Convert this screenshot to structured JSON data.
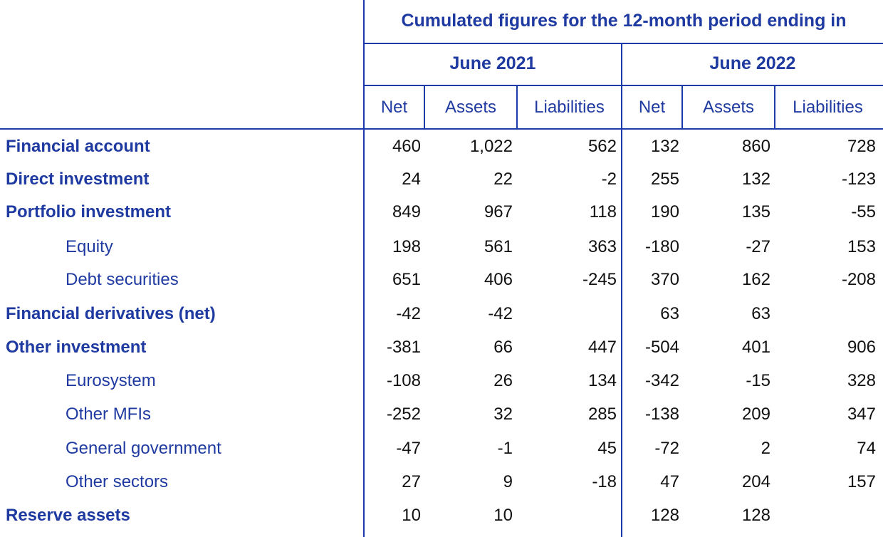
{
  "header": {
    "title": "Cumulated figures for the 12-month period ending in",
    "periods": [
      "June 2021",
      "June 2022"
    ],
    "columns": [
      "Net",
      "Assets",
      "Liabilities",
      "Net",
      "Assets",
      "Liabilities"
    ]
  },
  "rows": [
    {
      "label": "Financial account",
      "style": "main",
      "values": [
        "460",
        "1,022",
        "562",
        "132",
        "860",
        "728"
      ]
    },
    {
      "label": "Direct investment",
      "style": "main",
      "values": [
        "24",
        "22",
        "-2",
        "255",
        "132",
        "-123"
      ]
    },
    {
      "label": "Portfolio investment",
      "style": "main",
      "values": [
        "849",
        "967",
        "118",
        "190",
        "135",
        "-55"
      ]
    },
    {
      "label": "Equity",
      "style": "indent",
      "values": [
        "198",
        "561",
        "363",
        "-180",
        "-27",
        "153"
      ]
    },
    {
      "label": "Debt securities",
      "style": "indent",
      "values": [
        "651",
        "406",
        "-245",
        "370",
        "162",
        "-208"
      ]
    },
    {
      "label": "Financial derivatives (net)",
      "style": "main",
      "values": [
        "-42",
        "-42",
        "",
        "63",
        "63",
        ""
      ]
    },
    {
      "label": "Other investment",
      "style": "main",
      "values": [
        "-381",
        "66",
        "447",
        "-504",
        "401",
        "906"
      ]
    },
    {
      "label": "Eurosystem",
      "style": "indent",
      "values": [
        "-108",
        "26",
        "134",
        "-342",
        "-15",
        "328"
      ]
    },
    {
      "label": "Other MFIs",
      "style": "indent",
      "values": [
        "-252",
        "32",
        "285",
        "-138",
        "209",
        "347"
      ]
    },
    {
      "label": "General government",
      "style": "indent",
      "values": [
        "-47",
        "-1",
        "45",
        "-72",
        "2",
        "74"
      ]
    },
    {
      "label": "Other sectors",
      "style": "indent",
      "values": [
        "27",
        "9",
        "-18",
        "47",
        "204",
        "157"
      ]
    },
    {
      "label": "Reserve assets",
      "style": "main",
      "values": [
        "10",
        "10",
        "",
        "128",
        "128",
        ""
      ]
    }
  ]
}
